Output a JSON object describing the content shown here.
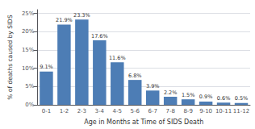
{
  "chart_data": {
    "type": "bar",
    "categories": [
      "0-1",
      "1-2",
      "2-3",
      "3-4",
      "4-5",
      "5-6",
      "6-7",
      "7-8",
      "8-9",
      "9-10",
      "10-11",
      "11-12"
    ],
    "values": [
      9.1,
      21.9,
      23.3,
      17.6,
      11.6,
      6.8,
      3.9,
      2.2,
      1.5,
      0.9,
      0.6,
      0.5
    ],
    "value_labels": [
      "9.1%",
      "21.9%",
      "23.3%",
      "17.6%",
      "11.6%",
      "6.8%",
      "3.9%",
      "2.2%",
      "1.5%",
      "0.9%",
      "0.6%",
      "0.5%"
    ],
    "data_labels": true,
    "color": "#4d7db5",
    "xlabel": "Age in Months at Time of SIDS Death",
    "ylabel": "% of deaths caused by SIDS",
    "ylim": [
      0,
      26
    ],
    "yticks": [
      {
        "value": 0,
        "label": "0%"
      },
      {
        "value": 5,
        "label": "5%"
      },
      {
        "value": 10,
        "label": "10%"
      },
      {
        "value": 15,
        "label": "15%"
      },
      {
        "value": 20,
        "label": "20%"
      },
      {
        "value": 25,
        "label": "25%"
      }
    ],
    "grid": true
  }
}
